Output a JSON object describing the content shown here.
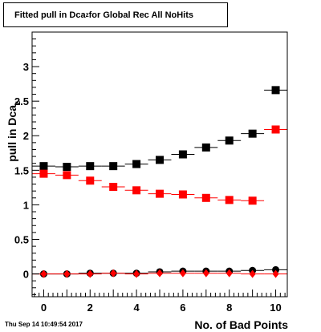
{
  "title": {
    "prefix": "Fitted pull in Dca",
    "subscript": "z",
    "suffix": " for Global Rec All NoHits"
  },
  "footer_timestamp": "Thu Sep 14 10:49:54 2017",
  "chart_data": {
    "type": "scatter",
    "title": "Fitted pull in Dca_z for Global Rec All NoHits",
    "xlabel": "No. of Bad Points",
    "ylabel": "pull in Dca_z",
    "ylabel_prefix": "pull in Dca",
    "ylabel_subscript": "z",
    "xlim": [
      -0.5,
      10.5
    ],
    "ylim": [
      -0.33,
      3.5
    ],
    "x_ticks": [
      0,
      2,
      4,
      6,
      8,
      10
    ],
    "y_ticks": [
      {
        "value": 0,
        "label": "0"
      },
      {
        "value": 0.5,
        "label": "0.5"
      },
      {
        "value": 1,
        "label": "1"
      },
      {
        "value": 1.5,
        "label": "1.5"
      },
      {
        "value": 2,
        "label": "2"
      },
      {
        "value": 2.5,
        "label": "2.5"
      },
      {
        "value": 3,
        "label": "3"
      }
    ],
    "grid": false,
    "series": [
      {
        "marker": "square",
        "color": "#000000",
        "x": [
          0,
          1,
          2,
          3,
          4,
          5,
          6,
          7,
          8,
          9,
          10
        ],
        "y": [
          1.56,
          1.55,
          1.56,
          1.56,
          1.59,
          1.65,
          1.73,
          1.83,
          1.93,
          2.03,
          2.66
        ]
      },
      {
        "marker": "square",
        "color": "#ff0000",
        "x": [
          0,
          1,
          2,
          3,
          4,
          5,
          6,
          7,
          8,
          9,
          10
        ],
        "y": [
          1.45,
          1.43,
          1.35,
          1.26,
          1.21,
          1.16,
          1.15,
          1.1,
          1.07,
          1.06,
          2.09
        ]
      },
      {
        "marker": "circle",
        "color": "#000000",
        "x": [
          0,
          1,
          2,
          3,
          4,
          5,
          6,
          7,
          8,
          9,
          10
        ],
        "y": [
          0.0,
          0.0,
          0.01,
          0.01,
          0.01,
          0.03,
          0.04,
          0.04,
          0.04,
          0.05,
          0.06
        ]
      },
      {
        "marker": "diamond",
        "color": "#ff0000",
        "x": [
          0,
          1,
          2,
          3,
          4,
          5,
          6,
          7,
          8,
          9,
          10
        ],
        "y": [
          0.0,
          0.0,
          0.0,
          0.01,
          0.0,
          0.01,
          0.01,
          0.01,
          0.01,
          0.0,
          0.0
        ]
      }
    ]
  }
}
